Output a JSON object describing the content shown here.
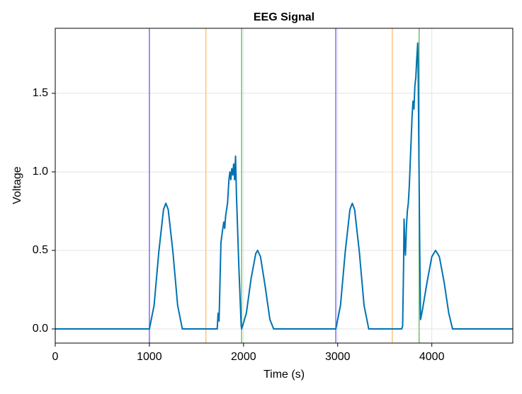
{
  "chart_data": {
    "type": "line",
    "title": "EEG Signal",
    "x_label": "Time (s)",
    "y_label": "Voltage",
    "x": [
      0,
      1000,
      1050,
      1100,
      1150,
      1175,
      1200,
      1250,
      1300,
      1350,
      1720,
      1730,
      1740,
      1750,
      1760,
      1775,
      1790,
      1800,
      1810,
      1830,
      1845,
      1855,
      1865,
      1875,
      1885,
      1895,
      1905,
      1915,
      1925,
      1950,
      1975,
      1980,
      2030,
      2080,
      2130,
      2150,
      2180,
      2230,
      2280,
      2320,
      2980,
      3030,
      3080,
      3130,
      3155,
      3180,
      3230,
      3280,
      3330,
      3680,
      3690,
      3700,
      3705,
      3712,
      3720,
      3730,
      3740,
      3750,
      3760,
      3770,
      3780,
      3790,
      3800,
      3810,
      3820,
      3830,
      3840,
      3850,
      3855,
      3870,
      3880,
      3900,
      3950,
      4000,
      4040,
      4080,
      4130,
      4180,
      4220,
      4860
    ],
    "series": [
      {
        "color": "#0072b2",
        "values": [
          0,
          0,
          0.15,
          0.49,
          0.76,
          0.8,
          0.76,
          0.49,
          0.15,
          0,
          0,
          0.1,
          0.05,
          0.3,
          0.55,
          0.62,
          0.68,
          0.64,
          0.72,
          0.8,
          0.95,
          1.0,
          0.95,
          1.02,
          0.98,
          1.05,
          0.95,
          1.1,
          0.85,
          0.4,
          0.02,
          0,
          0.1,
          0.32,
          0.48,
          0.5,
          0.46,
          0.27,
          0.06,
          0,
          0,
          0.15,
          0.49,
          0.76,
          0.8,
          0.76,
          0.49,
          0.15,
          0,
          0,
          0.02,
          0.4,
          0.7,
          0.55,
          0.47,
          0.65,
          0.75,
          0.8,
          0.9,
          1.05,
          1.2,
          1.35,
          1.45,
          1.4,
          1.55,
          1.6,
          1.72,
          1.82,
          1.65,
          0.6,
          0.06,
          0.12,
          0.3,
          0.46,
          0.5,
          0.46,
          0.3,
          0.1,
          0,
          0
        ]
      }
    ],
    "vlines": [
      {
        "x": 1000,
        "color": "#7b6cf0"
      },
      {
        "x": 1600,
        "color": "#ffc47a"
      },
      {
        "x": 1980,
        "color": "#6cc06c"
      },
      {
        "x": 2980,
        "color": "#7b6cf0"
      },
      {
        "x": 3580,
        "color": "#ffc47a"
      },
      {
        "x": 3865,
        "color": "#6cc06c"
      }
    ],
    "xlim": [
      0,
      4860
    ],
    "ylim": [
      -0.09,
      1.914
    ],
    "xticks": [
      0,
      1000,
      2000,
      3000,
      4000
    ],
    "yticks": [
      {
        "value": 0,
        "label": "0.0"
      },
      0.5,
      {
        "value": 1,
        "label": "1.0"
      },
      1.5
    ],
    "grid": true
  }
}
